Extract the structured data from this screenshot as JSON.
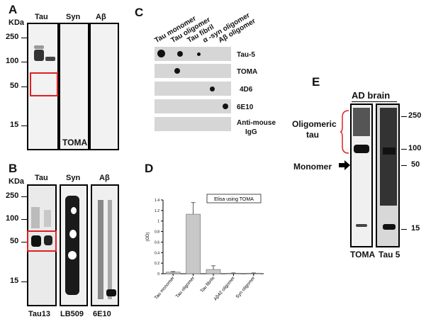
{
  "panelA": {
    "letter": "A",
    "kda": "KDa",
    "lanes": [
      "Tau",
      "Syn",
      "Aβ"
    ],
    "markers": [
      "250",
      "100",
      "50",
      "15"
    ],
    "antibody": "TOMA"
  },
  "panelB": {
    "letter": "B",
    "kda": "KDa",
    "lanes": [
      "Tau",
      "Syn",
      "Aβ"
    ],
    "markers": [
      "250",
      "100",
      "50",
      "15"
    ],
    "antibodies": [
      "Tau13",
      "LB509",
      "6E10"
    ]
  },
  "panelC": {
    "letter": "C",
    "columns": [
      "Tau monomer",
      "Tau oligomer",
      "Tau fibril",
      "α -syn oligomer",
      "Aβ oligomer"
    ],
    "rows": [
      "Tau-5",
      "TOMA",
      "4D6",
      "6E10",
      "Anti-mouse",
      "IgG"
    ]
  },
  "panelD": {
    "letter": "D",
    "chart_data": {
      "type": "bar",
      "title": "Elisa using TOMA",
      "ylabel": "(OD)",
      "xlabel": "",
      "categories": [
        "Tau monomer",
        "Tau oligomer",
        "Tau fibrils",
        "Aβ42 oligomer",
        "Syn oligomer"
      ],
      "values": [
        0.03,
        1.13,
        0.08,
        0.01,
        0.01
      ],
      "errors": [
        0.01,
        0.22,
        0.07,
        0.005,
        0.005
      ],
      "ylim": [
        0,
        1.4
      ],
      "yticks": [
        "0",
        "0.2",
        "0.4",
        "0.6",
        "0.8",
        "1",
        "1.2",
        "1.4"
      ],
      "grid": false,
      "bar_color": "#c8c8c8"
    }
  },
  "panelE": {
    "letter": "E",
    "title": "AD brain",
    "oligo": [
      "Oligomeric",
      "tau"
    ],
    "monomer": "Monomer",
    "markers": [
      "250",
      "100",
      "50",
      "15"
    ],
    "antibodies": [
      "TOMA",
      "Tau 5"
    ]
  }
}
